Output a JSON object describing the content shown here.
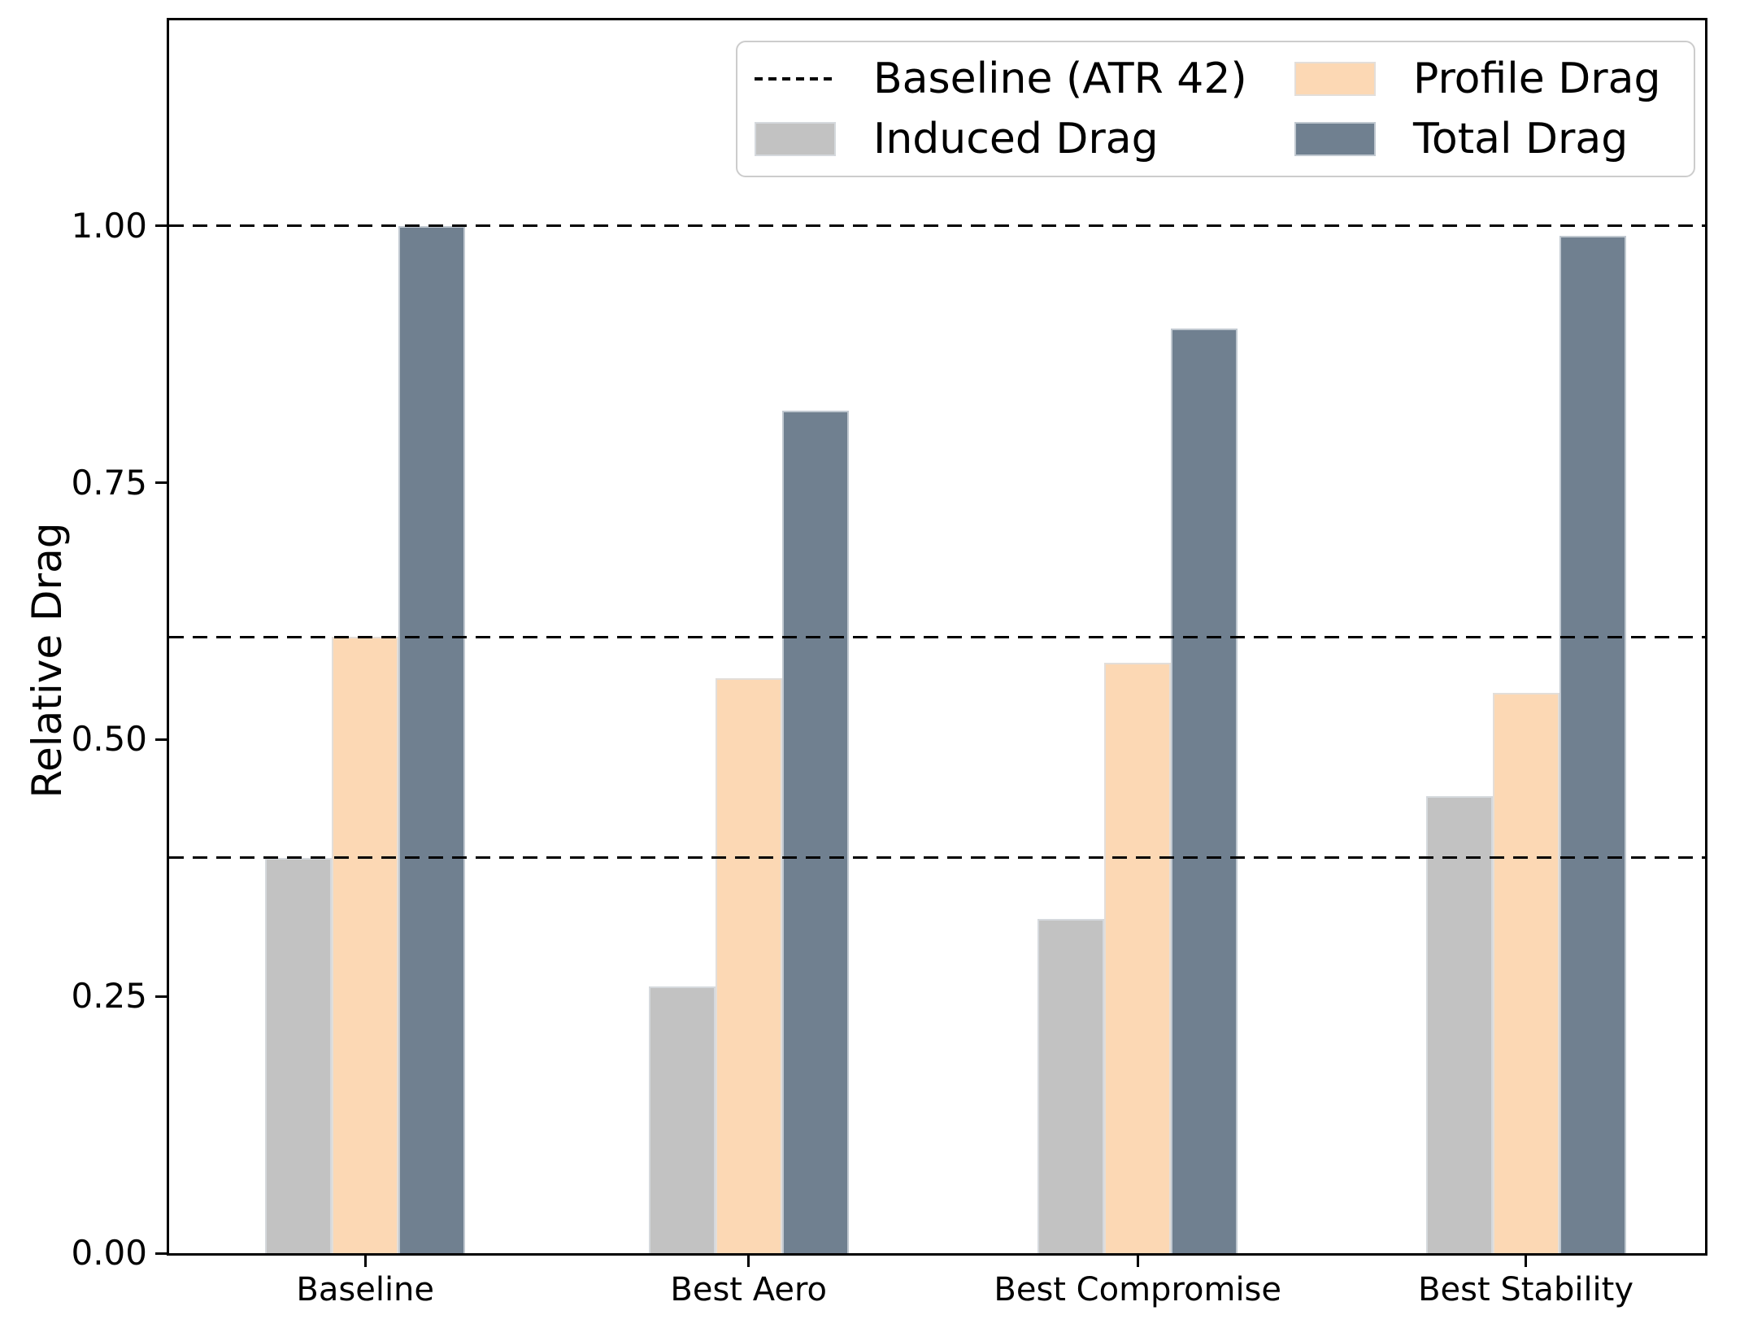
{
  "figure": {
    "background": "#ffffff"
  },
  "chart_data": {
    "type": "bar",
    "title": "",
    "xlabel": "",
    "ylabel": "Relative Drag",
    "categories": [
      "Baseline",
      "Best Aero",
      "Best Compromise",
      "Best Stability"
    ],
    "series": [
      {
        "name": "Induced Drag",
        "color": "#c2c2c2",
        "values": [
          0.385,
          0.26,
          0.325,
          0.445
        ]
      },
      {
        "name": "Profile Drag",
        "color": "#fcd8b4",
        "values": [
          0.6,
          0.56,
          0.575,
          0.545
        ]
      },
      {
        "name": "Total Drag",
        "color": "#708090",
        "values": [
          1.0,
          0.82,
          0.9,
          0.99
        ]
      }
    ],
    "baseline_lines": {
      "label": "Baseline (ATR 42)",
      "values": [
        1.0,
        0.6,
        0.385
      ],
      "style": "dashed",
      "color": "#000000"
    },
    "yticks": [
      0.0,
      0.25,
      0.5,
      0.75,
      1.0
    ],
    "ytick_labels": [
      "0.00",
      "0.25",
      "0.50",
      "0.75",
      "1.00"
    ],
    "ylim": [
      0,
      1.2
    ],
    "grid": false,
    "legend": {
      "position": "upper right",
      "columns": 2,
      "items": [
        {
          "label": "Baseline (ATR 42)",
          "swatch": "dashed-line",
          "color": "#000000"
        },
        {
          "label": "Induced Drag",
          "swatch": "patch",
          "color": "#c2c2c2"
        },
        {
          "label": "Profile Drag",
          "swatch": "patch",
          "color": "#fcd8b4"
        },
        {
          "label": "Total Drag",
          "swatch": "patch",
          "color": "#708090"
        }
      ]
    }
  }
}
